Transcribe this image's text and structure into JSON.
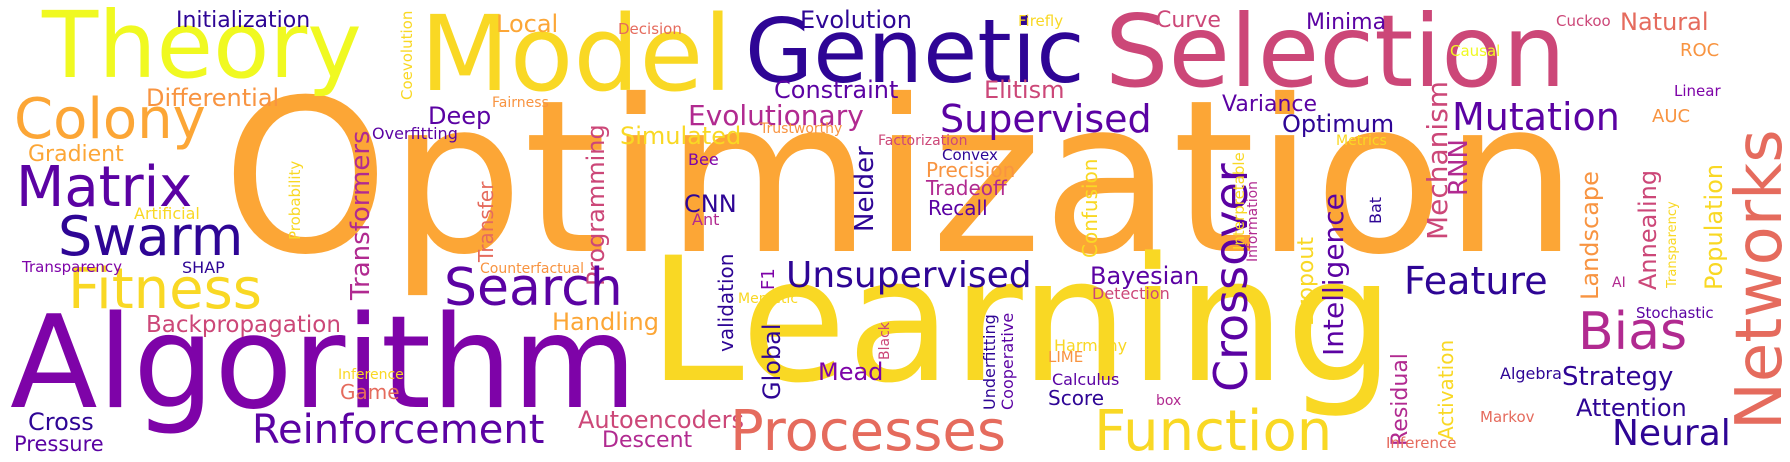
{
  "palette": {
    "c1": "#2e0595",
    "c2": "#5b02a3",
    "c3": "#7e03a8",
    "c4": "#b12a90",
    "c5": "#cc4778",
    "c6": "#e56b5d",
    "c7": "#f89441",
    "c8": "#fca636",
    "c9": "#f9d824",
    "c10": "#f0f921"
  },
  "words": [
    {
      "text": "Optimization",
      "color": "#fca636"
    },
    {
      "text": "Learning",
      "color": "#f9d824"
    },
    {
      "text": "Algorithm",
      "color": "#7e03a8"
    },
    {
      "text": "Selection",
      "color": "#cc4778"
    },
    {
      "text": "Genetic",
      "color": "#2e0595"
    },
    {
      "text": "Theory",
      "color": "#f0f921"
    },
    {
      "text": "Model",
      "color": "#f9d824"
    },
    {
      "text": "Networks",
      "color": "#e56b5d"
    },
    {
      "text": "Colony",
      "color": "#fca636"
    },
    {
      "text": "Matrix",
      "color": "#5b02a3"
    },
    {
      "text": "Swarm",
      "color": "#2e0595"
    },
    {
      "text": "Fitness",
      "color": "#f9d824"
    },
    {
      "text": "Search",
      "color": "#5b02a3"
    },
    {
      "text": "Processes",
      "color": "#e56b5d"
    },
    {
      "text": "Function",
      "color": "#f9d824"
    },
    {
      "text": "Reinforcement",
      "color": "#5b02a3"
    },
    {
      "text": "Bias",
      "color": "#b12a90"
    },
    {
      "text": "Crossover",
      "color": "#5b02a3"
    },
    {
      "text": "Supervised",
      "color": "#5b02a3"
    },
    {
      "text": "Unsupervised",
      "color": "#2e0595"
    },
    {
      "text": "Evolutionary",
      "color": "#b12a90"
    },
    {
      "text": "Mutation",
      "color": "#5b02a3"
    },
    {
      "text": "Feature",
      "color": "#2e0595"
    },
    {
      "text": "Neural",
      "color": "#2e0595"
    },
    {
      "text": "Initialization",
      "color": "#2e0595"
    },
    {
      "text": "Evolution",
      "color": "#2e0595"
    },
    {
      "text": "Curve",
      "color": "#cc4778"
    },
    {
      "text": "Minima",
      "color": "#5b02a3"
    },
    {
      "text": "Natural",
      "color": "#e56b5d"
    },
    {
      "text": "Local",
      "color": "#fca636"
    },
    {
      "text": "Decision",
      "color": "#e56b5d"
    },
    {
      "text": "Firefly",
      "color": "#f9d824"
    },
    {
      "text": "Cuckoo",
      "color": "#cc4778"
    },
    {
      "text": "Causal",
      "color": "#f0f921"
    },
    {
      "text": "ROC",
      "color": "#f89441"
    },
    {
      "text": "Linear",
      "color": "#7e03a8"
    },
    {
      "text": "Differential",
      "color": "#f89441"
    },
    {
      "text": "Constraint",
      "color": "#5b02a3"
    },
    {
      "text": "Elitism",
      "color": "#cc4778"
    },
    {
      "text": "Coevolution",
      "color": "#f9d824"
    },
    {
      "text": "Fairness",
      "color": "#f89441"
    },
    {
      "text": "Deep",
      "color": "#5b02a3"
    },
    {
      "text": "Variance",
      "color": "#5b02a3"
    },
    {
      "text": "Optimum",
      "color": "#2e0595"
    },
    {
      "text": "AUC",
      "color": "#f89441"
    },
    {
      "text": "Gradient",
      "color": "#fca636"
    },
    {
      "text": "Overfitting",
      "color": "#5b02a3"
    },
    {
      "text": "Simulated",
      "color": "#f9d824"
    },
    {
      "text": "Trustworthy",
      "color": "#f89441"
    },
    {
      "text": "Factorization",
      "color": "#cc4778"
    },
    {
      "text": "Metrics",
      "color": "#f9d824"
    },
    {
      "text": "Convex",
      "color": "#2e0595"
    },
    {
      "text": "Bee",
      "color": "#7e03a8"
    },
    {
      "text": "Precision",
      "color": "#f89441"
    },
    {
      "text": "Tradeoff",
      "color": "#b12a90"
    },
    {
      "text": "Recall",
      "color": "#5b02a3"
    },
    {
      "text": "CNN",
      "color": "#2e0595"
    },
    {
      "text": "Ant",
      "color": "#b12a90"
    },
    {
      "text": "Artificial",
      "color": "#f9d824"
    },
    {
      "text": "Probability",
      "color": "#f9d824"
    },
    {
      "text": "Transformers",
      "color": "#b12a90"
    },
    {
      "text": "Transfer",
      "color": "#e56b5d"
    },
    {
      "text": "Programming",
      "color": "#cc4778"
    },
    {
      "text": "Nelder",
      "color": "#2e0595"
    },
    {
      "text": "Confusion",
      "color": "#f9d824"
    },
    {
      "text": "Interpretable",
      "color": "#f9d824"
    },
    {
      "text": "Information",
      "color": "#b12a90"
    },
    {
      "text": "Intelligence",
      "color": "#5b02a3"
    },
    {
      "text": "Mechanism",
      "color": "#cc4778"
    },
    {
      "text": "RNN",
      "color": "#b12a90"
    },
    {
      "text": "Bat",
      "color": "#2e0595"
    },
    {
      "text": "Landscape",
      "color": "#f89441"
    },
    {
      "text": "Annealing",
      "color": "#cc4778"
    },
    {
      "text": "Population",
      "color": "#f9d824"
    },
    {
      "text": "Transparency",
      "color": "#f9d824"
    },
    {
      "text": "SHAP",
      "color": "#7e03a8"
    },
    {
      "text": "Counterfactual",
      "color": "#2e0595"
    },
    {
      "text": "Explanations",
      "color": "#f89441"
    },
    {
      "text": "F1",
      "color": "#7e03a8"
    },
    {
      "text": "Bayesian",
      "color": "#5b02a3"
    },
    {
      "text": "Detection",
      "color": "#cc4778"
    },
    {
      "text": "Dropout",
      "color": "#f9d824"
    },
    {
      "text": "AI",
      "color": "#b12a90"
    },
    {
      "text": "Stochastic",
      "color": "#5b02a3"
    },
    {
      "text": "Backpropagation",
      "color": "#cc4778"
    },
    {
      "text": "Handling",
      "color": "#fca636"
    },
    {
      "text": "Memetic",
      "color": "#f9d824"
    },
    {
      "text": "validation",
      "color": "#2e0595"
    },
    {
      "text": "Global",
      "color": "#2e0595"
    },
    {
      "text": "Black",
      "color": "#cc4778"
    },
    {
      "text": "Underfitting",
      "color": "#2e0595"
    },
    {
      "text": "Cooperative",
      "color": "#5b02a3"
    },
    {
      "text": "Harmony",
      "color": "#f9d824"
    },
    {
      "text": "LIME",
      "color": "#f89441"
    },
    {
      "text": "Mead",
      "color": "#7e03a8"
    },
    {
      "text": "Calculus",
      "color": "#5b02a3"
    },
    {
      "text": "Score",
      "color": "#2e0595"
    },
    {
      "text": "box",
      "color": "#b12a90"
    },
    {
      "text": "Residual",
      "color": "#b12a90"
    },
    {
      "text": "Activation",
      "color": "#f9d824"
    },
    {
      "text": "Algebra",
      "color": "#2e0595"
    },
    {
      "text": "Strategy",
      "color": "#2e0595"
    },
    {
      "text": "Attention",
      "color": "#2e0595"
    },
    {
      "text": "Markov",
      "color": "#e56b5d"
    },
    {
      "text": "Inference",
      "color": "#e56b5d"
    },
    {
      "text": "Game",
      "color": "#f9d824"
    },
    {
      "text": "Cross",
      "color": "#e56b5d"
    },
    {
      "text": "Pressure",
      "color": "#2e0595"
    },
    {
      "text": "Autoencoders",
      "color": "#5b02a3"
    },
    {
      "text": "Descent",
      "color": "#cc4778"
    },
    {
      "text": "Particle",
      "color": "#b12a90"
    }
  ]
}
